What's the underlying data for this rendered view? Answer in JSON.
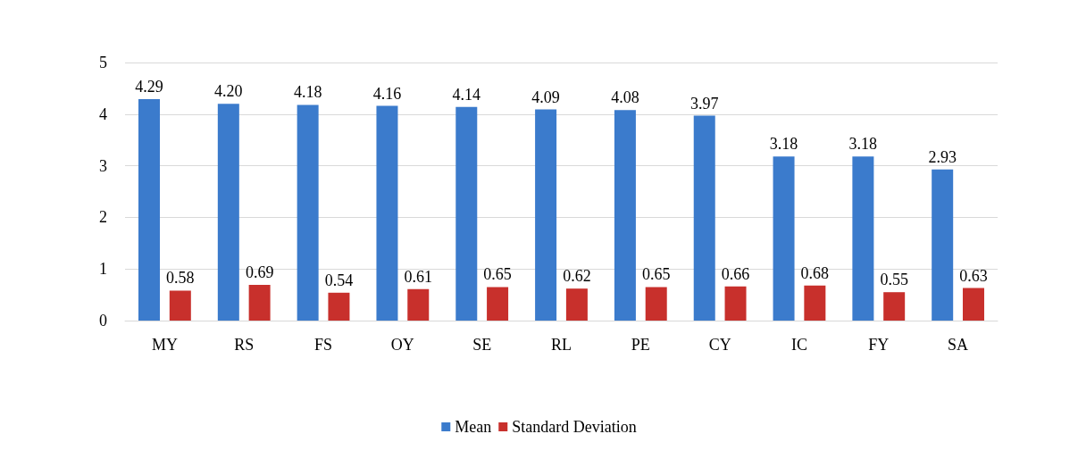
{
  "chart_data": {
    "type": "bar",
    "categories": [
      "MY",
      "RS",
      "FS",
      "OY",
      "SE",
      "RL",
      "PE",
      "CY",
      "IC",
      "FY",
      "SA"
    ],
    "series": [
      {
        "name": "Mean",
        "color": "#3b7bcc",
        "values": [
          4.29,
          4.2,
          4.18,
          4.16,
          4.14,
          4.09,
          4.08,
          3.97,
          3.18,
          3.18,
          2.93
        ],
        "value_labels": [
          "4.29",
          "4.20",
          "4.18",
          "4.16",
          "4.14",
          "4.09",
          "4.08",
          "3.97",
          "3.18",
          "3.18",
          "2.93"
        ]
      },
      {
        "name": "Standard Deviation",
        "color": "#c8302c",
        "values": [
          0.58,
          0.69,
          0.54,
          0.61,
          0.65,
          0.62,
          0.65,
          0.66,
          0.68,
          0.55,
          0.63
        ],
        "value_labels": [
          "0.58",
          "0.69",
          "0.54",
          "0.61",
          "0.65",
          "0.62",
          "0.65",
          "0.66",
          "0.68",
          "0.55",
          "0.63"
        ]
      }
    ],
    "ylim": [
      0,
      5
    ],
    "yticks": [
      0,
      1,
      2,
      3,
      4,
      5
    ],
    "grid": "y",
    "legend": "bottom"
  }
}
